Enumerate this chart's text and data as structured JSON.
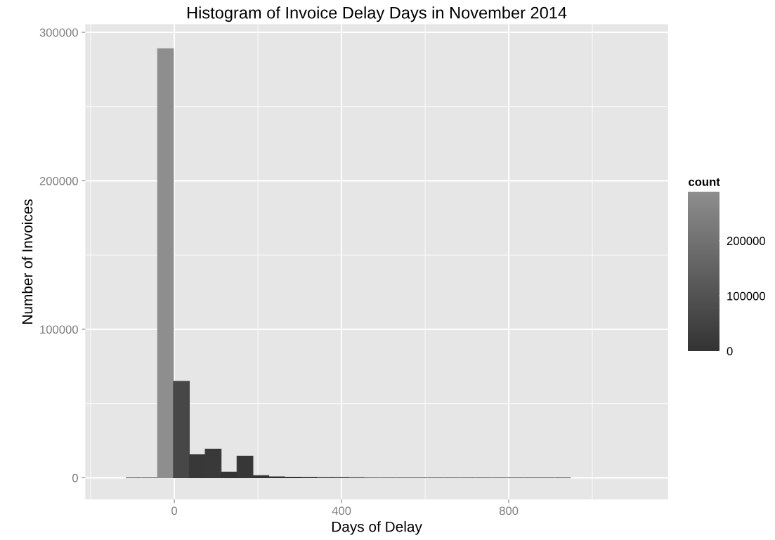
{
  "chart_data": {
    "type": "histogram",
    "title": "Histogram of Invoice Delay Days in November 2014",
    "xlabel": "Days of Delay",
    "ylabel": "Number of Invoices",
    "clabel": "count",
    "bins": [
      -116,
      -78,
      -40,
      -2,
      36,
      74,
      112,
      150,
      188,
      226,
      264,
      302,
      340,
      378,
      416,
      454,
      492,
      530,
      568,
      606,
      644,
      682,
      720,
      758,
      796,
      834,
      872,
      910,
      948
    ],
    "values": [
      0,
      0,
      289000,
      65000,
      15500,
      19300,
      3800,
      14600,
      1500,
      700,
      400,
      300,
      200,
      200,
      100,
      0,
      0,
      0,
      0,
      0,
      0,
      0,
      0,
      0,
      0,
      0,
      0,
      0
    ],
    "xlim": [
      -213,
      1181
    ],
    "xticks": [
      0,
      400,
      800
    ],
    "ylim": [
      -14600,
      305400
    ],
    "yticks": [
      0,
      100000,
      200000,
      300000
    ],
    "clim": [
      0,
      289000
    ],
    "cticks": [
      0,
      100000,
      200000
    ],
    "grid": true,
    "legend": false
  }
}
